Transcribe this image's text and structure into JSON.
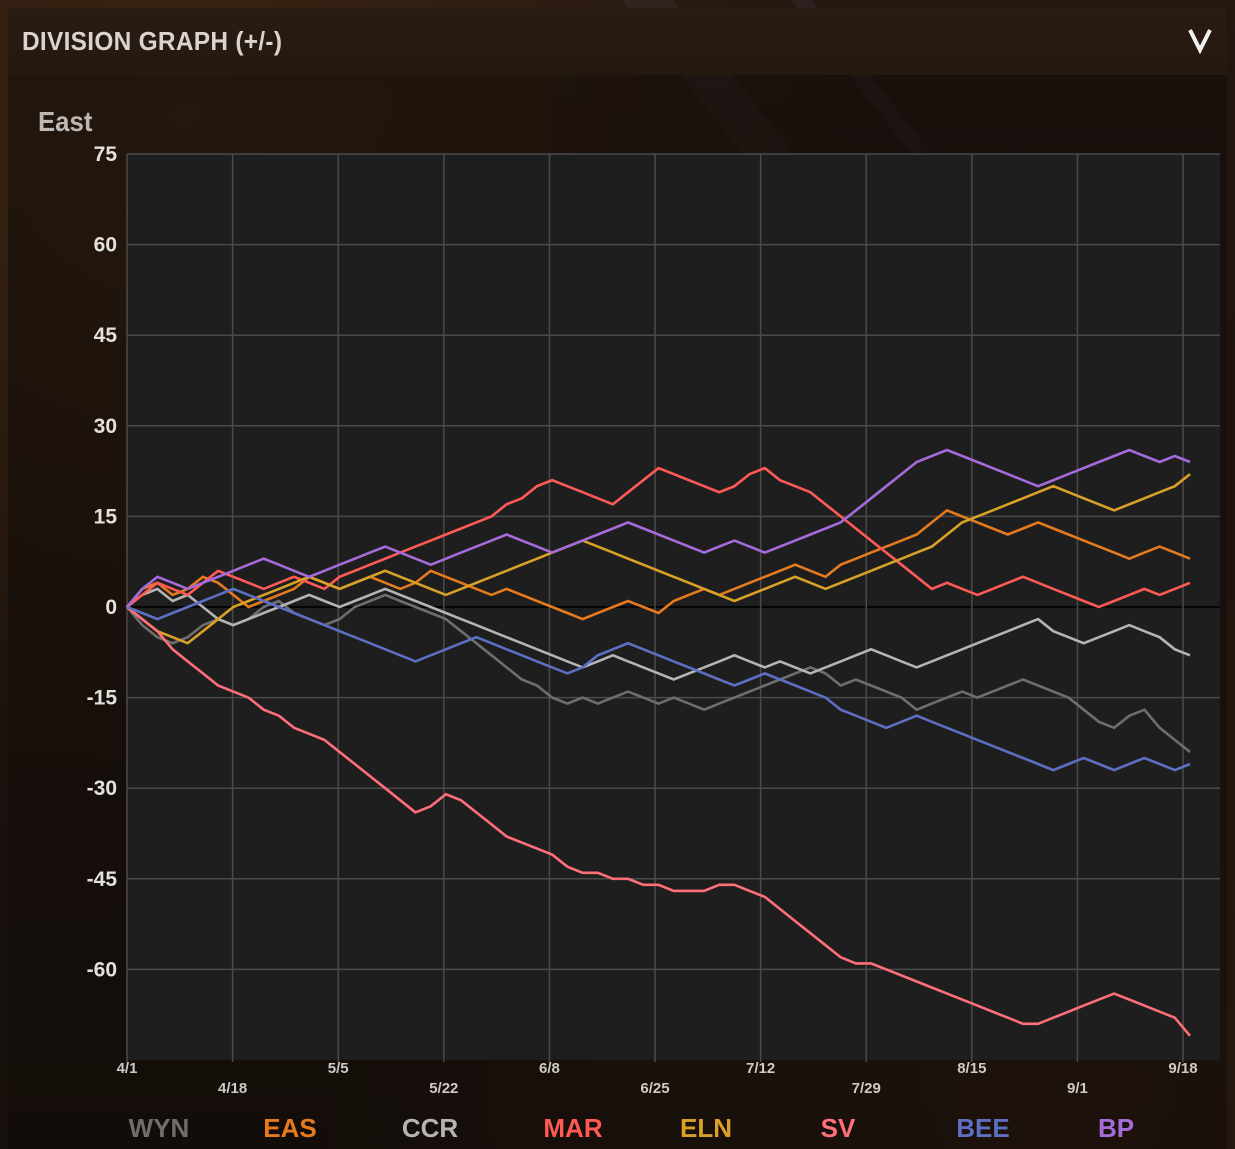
{
  "header": {
    "title": "DIVISION GRAPH (+/-)",
    "collapse_icon": "chevron-down-icon"
  },
  "division": "East",
  "chart_data": {
    "type": "line",
    "title": "",
    "xlabel": "",
    "ylabel": "",
    "ylim": [
      -75,
      75
    ],
    "y_ticks": [
      75,
      60,
      45,
      30,
      15,
      0,
      -15,
      -30,
      -45,
      -60
    ],
    "x_ticks": [
      "4/1",
      "4/18",
      "5/5",
      "5/22",
      "6/8",
      "6/25",
      "7/12",
      "7/29",
      "8/15",
      "9/1",
      "9/18"
    ],
    "grid": true,
    "legend_placement": "bottom",
    "background": "#1e1e1e",
    "series": [
      {
        "name": "WYN",
        "color": "#6e6e6e",
        "values": [
          0,
          -3,
          -5,
          -6,
          -5,
          -3,
          -2,
          -3,
          -2,
          0,
          1,
          -1,
          -2,
          -3,
          -2,
          0,
          1,
          2,
          1,
          0,
          -1,
          -2,
          -4,
          -6,
          -8,
          -10,
          -12,
          -13,
          -15,
          -16,
          -15,
          -16,
          -15,
          -14,
          -15,
          -16,
          -15,
          -16,
          -17,
          -16,
          -15,
          -14,
          -13,
          -12,
          -11,
          -10,
          -11,
          -13,
          -12,
          -13,
          -14,
          -15,
          -17,
          -16,
          -15,
          -14,
          -15,
          -14,
          -13,
          -12,
          -13,
          -14,
          -15,
          -17,
          -19,
          -20,
          -18,
          -17,
          -20,
          -22,
          -24
        ]
      },
      {
        "name": "EAS",
        "color": "#e57a1f",
        "values": [
          0,
          3,
          4,
          2,
          3,
          5,
          4,
          2,
          0,
          1,
          2,
          3,
          5,
          4,
          3,
          4,
          5,
          4,
          3,
          4,
          6,
          5,
          4,
          3,
          2,
          3,
          2,
          1,
          0,
          -1,
          -2,
          -1,
          0,
          1,
          0,
          -1,
          1,
          2,
          3,
          2,
          3,
          4,
          5,
          6,
          7,
          6,
          5,
          7,
          8,
          9,
          10,
          11,
          12,
          14,
          16,
          15,
          14,
          13,
          12,
          13,
          14,
          13,
          12,
          11,
          10,
          9,
          8,
          9,
          10,
          9,
          8
        ]
      },
      {
        "name": "CCR",
        "color": "#b4b4b4",
        "values": [
          0,
          2,
          3,
          1,
          2,
          0,
          -2,
          -3,
          -2,
          -1,
          0,
          1,
          2,
          1,
          0,
          1,
          2,
          3,
          2,
          1,
          0,
          -1,
          -2,
          -3,
          -4,
          -5,
          -6,
          -7,
          -8,
          -9,
          -10,
          -9,
          -8,
          -9,
          -10,
          -11,
          -12,
          -11,
          -10,
          -9,
          -8,
          -9,
          -10,
          -9,
          -10,
          -11,
          -10,
          -9,
          -8,
          -7,
          -8,
          -9,
          -10,
          -9,
          -8,
          -7,
          -6,
          -5,
          -4,
          -3,
          -2,
          -4,
          -5,
          -6,
          -5,
          -4,
          -3,
          -4,
          -5,
          -7,
          -8
        ]
      },
      {
        "name": "MAR",
        "color": "#ff5a55",
        "values": [
          0,
          2,
          4,
          3,
          2,
          4,
          6,
          5,
          4,
          3,
          4,
          5,
          4,
          3,
          5,
          6,
          7,
          8,
          9,
          10,
          11,
          12,
          13,
          14,
          15,
          17,
          18,
          20,
          21,
          20,
          19,
          18,
          17,
          19,
          21,
          23,
          22,
          21,
          20,
          19,
          20,
          22,
          23,
          21,
          20,
          19,
          17,
          15,
          13,
          11,
          9,
          7,
          5,
          3,
          4,
          3,
          2,
          3,
          4,
          5,
          4,
          3,
          2,
          1,
          0,
          1,
          2,
          3,
          2,
          3,
          4
        ]
      },
      {
        "name": "ELN",
        "color": "#d9a127",
        "values": [
          0,
          -2,
          -4,
          -5,
          -6,
          -4,
          -2,
          0,
          1,
          2,
          3,
          4,
          5,
          4,
          3,
          4,
          5,
          6,
          5,
          4,
          3,
          2,
          3,
          4,
          5,
          6,
          7,
          8,
          9,
          10,
          11,
          10,
          9,
          8,
          7,
          6,
          5,
          4,
          3,
          2,
          1,
          2,
          3,
          4,
          5,
          4,
          3,
          4,
          5,
          6,
          7,
          8,
          9,
          10,
          12,
          14,
          15,
          16,
          17,
          18,
          19,
          20,
          19,
          18,
          17,
          16,
          17,
          18,
          19,
          20,
          22
        ]
      },
      {
        "name": "SV",
        "color": "#ff6f79",
        "values": [
          0,
          -2,
          -4,
          -7,
          -9,
          -11,
          -13,
          -14,
          -15,
          -17,
          -18,
          -20,
          -21,
          -22,
          -24,
          -26,
          -28,
          -30,
          -32,
          -34,
          -33,
          -31,
          -32,
          -34,
          -36,
          -38,
          -39,
          -40,
          -41,
          -43,
          -44,
          -44,
          -45,
          -45,
          -46,
          -46,
          -47,
          -47,
          -47,
          -46,
          -46,
          -47,
          -48,
          -50,
          -52,
          -54,
          -56,
          -58,
          -59,
          -59,
          -60,
          -61,
          -62,
          -63,
          -64,
          -65,
          -66,
          -67,
          -68,
          -69,
          -69,
          -68,
          -67,
          -66,
          -65,
          -64,
          -65,
          -66,
          -67,
          -68,
          -71
        ]
      },
      {
        "name": "BEE",
        "color": "#5d6fc3",
        "values": [
          0,
          -1,
          -2,
          -1,
          0,
          1,
          2,
          3,
          2,
          1,
          0,
          -1,
          -2,
          -3,
          -4,
          -5,
          -6,
          -7,
          -8,
          -9,
          -8,
          -7,
          -6,
          -5,
          -6,
          -7,
          -8,
          -9,
          -10,
          -11,
          -10,
          -8,
          -7,
          -6,
          -7,
          -8,
          -9,
          -10,
          -11,
          -12,
          -13,
          -12,
          -11,
          -12,
          -13,
          -14,
          -15,
          -17,
          -18,
          -19,
          -20,
          -19,
          -18,
          -19,
          -20,
          -21,
          -22,
          -23,
          -24,
          -25,
          -26,
          -27,
          -26,
          -25,
          -26,
          -27,
          -26,
          -25,
          -26,
          -27,
          -26
        ]
      },
      {
        "name": "BP",
        "color": "#a66bdb",
        "values": [
          0,
          3,
          5,
          4,
          3,
          4,
          5,
          6,
          7,
          8,
          7,
          6,
          5,
          6,
          7,
          8,
          9,
          10,
          9,
          8,
          7,
          8,
          9,
          10,
          11,
          12,
          11,
          10,
          9,
          10,
          11,
          12,
          13,
          14,
          13,
          12,
          11,
          10,
          9,
          10,
          11,
          10,
          9,
          10,
          11,
          12,
          13,
          14,
          16,
          18,
          20,
          22,
          24,
          25,
          26,
          25,
          24,
          23,
          22,
          21,
          20,
          21,
          22,
          23,
          24,
          25,
          26,
          25,
          24,
          25,
          24
        ]
      }
    ]
  }
}
